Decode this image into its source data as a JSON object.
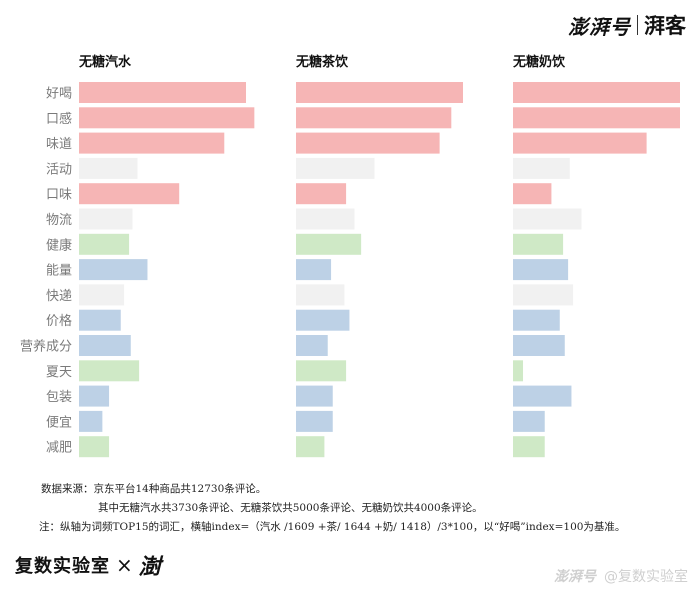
{
  "header": {
    "logo_primary": "澎湃号",
    "logo_secondary": "湃客"
  },
  "chart_data": {
    "type": "bar",
    "orientation": "horizontal",
    "categories": [
      "好喝",
      "口感",
      "味道",
      "活动",
      "口味",
      "物流",
      "健康",
      "能量",
      "快递",
      "价格",
      "营养成分",
      "夏天",
      "包装",
      "便宜",
      "减肥"
    ],
    "category_colors": {
      "好喝": "#f6b5b5",
      "口感": "#f6b5b5",
      "味道": "#f6b5b5",
      "口味": "#f6b5b5",
      "活动": "#f1f1f1",
      "物流": "#f1f1f1",
      "快递": "#f1f1f1",
      "健康": "#cfe9c6",
      "夏天": "#cfe9c6",
      "减肥": "#cfe9c6",
      "能量": "#bdd1e6",
      "价格": "#bdd1e6",
      "营养成分": "#bdd1e6",
      "包装": "#bdd1e6",
      "便宜": "#bdd1e6"
    },
    "xlim": [
      0,
      100
    ],
    "series": [
      {
        "name": "无糖汽水",
        "values": [
          100,
          105,
          87,
          35,
          60,
          32,
          30,
          41,
          27,
          25,
          31,
          36,
          18,
          14,
          18
        ]
      },
      {
        "name": "无糖茶饮",
        "values": [
          100,
          93,
          86,
          47,
          30,
          35,
          39,
          21,
          29,
          32,
          19,
          30,
          22,
          22,
          17
        ]
      },
      {
        "name": "无糖奶饮",
        "values": [
          100,
          100,
          80,
          34,
          23,
          41,
          30,
          33,
          36,
          28,
          31,
          6,
          35,
          19,
          19
        ]
      }
    ]
  },
  "notes": {
    "line1": "数据来源：京东平台14种商品共12730条评论。",
    "line2": "其中无糖汽水共3730条评论、无糖茶饮共5000条评论、无糖奶饮共4000条评论。",
    "line3": "注：纵轴为词频TOP15的词汇，横轴index=（汽水 /1609 +茶/ 1644 +奶/ 1418）/3*100，以“好喝”index=100为基准。"
  },
  "footer": {
    "lab_name": "复数实验室",
    "times": "×",
    "partner": "澍"
  },
  "watermark": {
    "platform": "澎湃号",
    "account": "@复数实验室"
  }
}
